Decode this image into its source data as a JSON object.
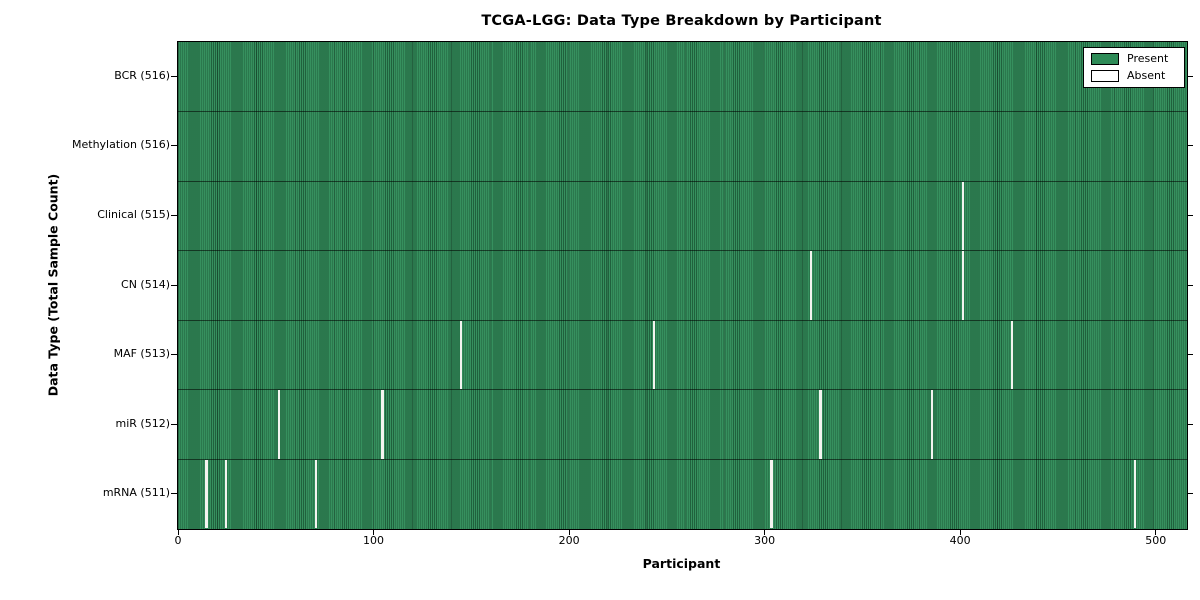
{
  "chart_data": {
    "type": "heatmap",
    "title": "TCGA-LGG: Data Type Breakdown by Participant",
    "xlabel": "Participant",
    "ylabel": "Data Type (Total Sample Count)",
    "x_ticks": [
      0,
      100,
      200,
      300,
      400,
      500
    ],
    "xlim": [
      0,
      516
    ],
    "n_participants": 516,
    "rows": [
      {
        "label": "BCR (516)",
        "data_type": "BCR",
        "total_samples": 516,
        "absent_participants": []
      },
      {
        "label": "Methylation (516)",
        "data_type": "Methylation",
        "total_samples": 516,
        "absent_participants": []
      },
      {
        "label": "Clinical (515)",
        "data_type": "Clinical",
        "total_samples": 515,
        "absent_participants": [
          401
        ]
      },
      {
        "label": "CN (514)",
        "data_type": "CN",
        "total_samples": 514,
        "absent_participants": [
          323,
          401
        ]
      },
      {
        "label": "MAF (513)",
        "data_type": "MAF",
        "total_samples": 513,
        "absent_participants": [
          144,
          243,
          426
        ]
      },
      {
        "label": "miR (512)",
        "data_type": "miR",
        "total_samples": 512,
        "absent_participants": [
          51,
          104,
          328,
          385
        ]
      },
      {
        "label": "mRNA (511)",
        "data_type": "mRNA",
        "total_samples": 511,
        "absent_participants": [
          14,
          24,
          70,
          303,
          489
        ]
      }
    ],
    "legend": {
      "position": "upper right",
      "entries": [
        {
          "label": "Present",
          "color": "#2e8b57"
        },
        {
          "label": "Absent",
          "color": "#ffffff"
        }
      ]
    },
    "colors": {
      "present": "#2e8b57",
      "absent": "#ffffff",
      "cell_edge": "#000000",
      "axis": "#000000",
      "background": "#ffffff"
    },
    "grid": false
  }
}
